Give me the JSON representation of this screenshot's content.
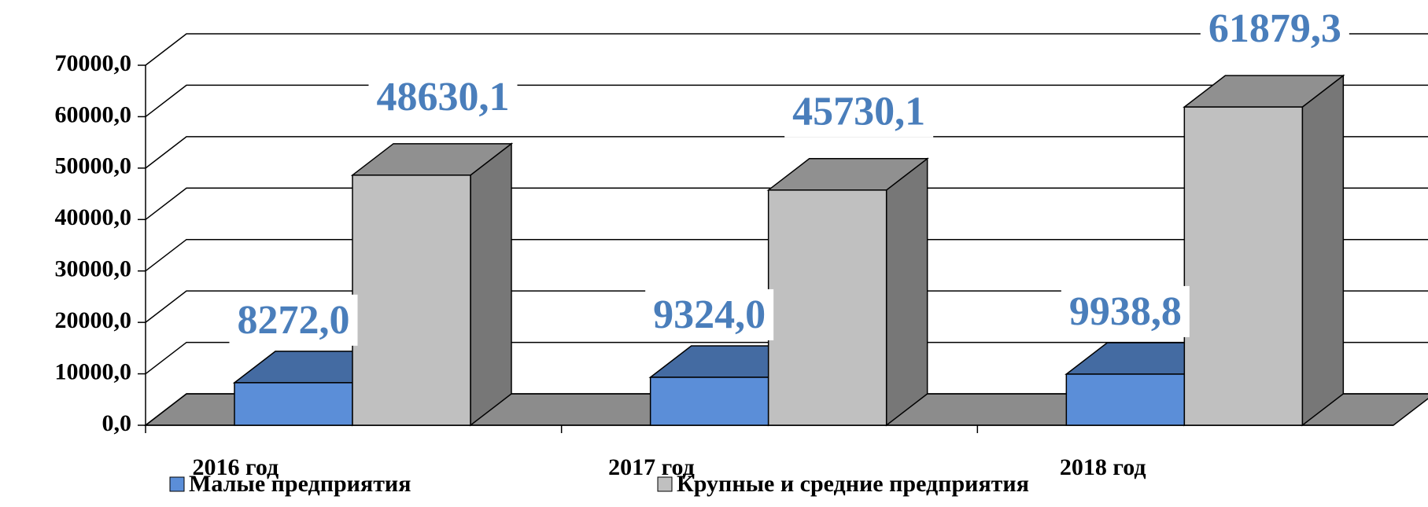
{
  "chart_data": {
    "type": "bar3d",
    "categories": [
      "2016 год",
      "2017 год",
      "2018 год"
    ],
    "series": [
      {
        "name": "Малые предприятия",
        "color": "#5b8ed8",
        "values": [
          8272.0,
          9324.0,
          9938.8
        ],
        "value_labels": [
          "8272,0",
          "9324,0",
          "9938,8"
        ]
      },
      {
        "name": "Крупные и средние предприятия",
        "color": "#c0c0c0",
        "values": [
          48630.1,
          45730.1,
          61879.3
        ],
        "value_labels": [
          "48630,1",
          "45730,1",
          "61879,3"
        ]
      }
    ],
    "ylim": [
      0,
      70000
    ],
    "yticks": [
      {
        "value": 0,
        "label": "0,0"
      },
      {
        "value": 10000,
        "label": "10000,0"
      },
      {
        "value": 20000,
        "label": "20000,0"
      },
      {
        "value": 30000,
        "label": "30000,0"
      },
      {
        "value": 40000,
        "label": "40000,0"
      },
      {
        "value": 50000,
        "label": "50000,0"
      },
      {
        "value": 60000,
        "label": "60000,0"
      },
      {
        "value": 70000,
        "label": "70000,0"
      }
    ],
    "grid": true,
    "legend": "bottom"
  }
}
